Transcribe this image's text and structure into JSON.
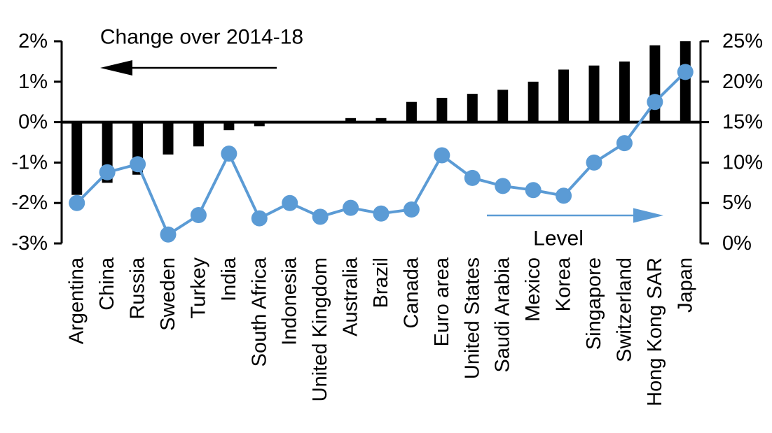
{
  "chart_data": {
    "type": "combo_bar_line",
    "title": "",
    "categories": [
      "Argentina",
      "China",
      "Russia",
      "Sweden",
      "Turkey",
      "India",
      "South Africa",
      "Indonesia",
      "United Kingdom",
      "Australia",
      "Brazil",
      "Canada",
      "Euro area",
      "United States",
      "Saudi Arabia",
      "Mexico",
      "Korea",
      "Singapore",
      "Switzerland",
      "Hong Kong SAR",
      "Japan"
    ],
    "series": [
      {
        "name": "Change over 2014-18",
        "type": "bar",
        "axis": "left",
        "color": "#000000",
        "values": [
          -1.8,
          -1.5,
          -1.3,
          -0.8,
          -0.6,
          -0.2,
          -0.1,
          0.0,
          0.0,
          0.1,
          0.1,
          0.5,
          0.6,
          0.7,
          0.8,
          1.0,
          1.3,
          1.4,
          1.5,
          1.9,
          2.0
        ]
      },
      {
        "name": "Level",
        "type": "line",
        "axis": "right",
        "color": "#5b9bd5",
        "values": [
          5.0,
          8.8,
          9.8,
          1.1,
          3.5,
          11.1,
          3.1,
          5.0,
          3.3,
          4.4,
          3.7,
          4.2,
          10.9,
          8.1,
          7.1,
          6.6,
          5.9,
          10.0,
          12.4,
          17.5,
          21.2
        ]
      }
    ],
    "left_axis": {
      "min": -3,
      "max": 2,
      "tick_step": 1,
      "tick_labels": [
        "2%",
        "1%",
        "0%",
        "-1%",
        "-2%",
        "-3%"
      ]
    },
    "right_axis": {
      "min": 0,
      "max": 25,
      "tick_step": 5,
      "tick_labels": [
        "25%",
        "20%",
        "15%",
        "10%",
        "5%",
        "0%"
      ]
    },
    "annotations": {
      "bar_label": {
        "text": "Change over 2014-18",
        "arrow_direction": "left",
        "color": "#000000"
      },
      "line_label": {
        "text": "Level",
        "arrow_direction": "right",
        "color": "#5b9bd5"
      }
    },
    "grid": false,
    "legend_position": "in-plot arrow annotations"
  }
}
